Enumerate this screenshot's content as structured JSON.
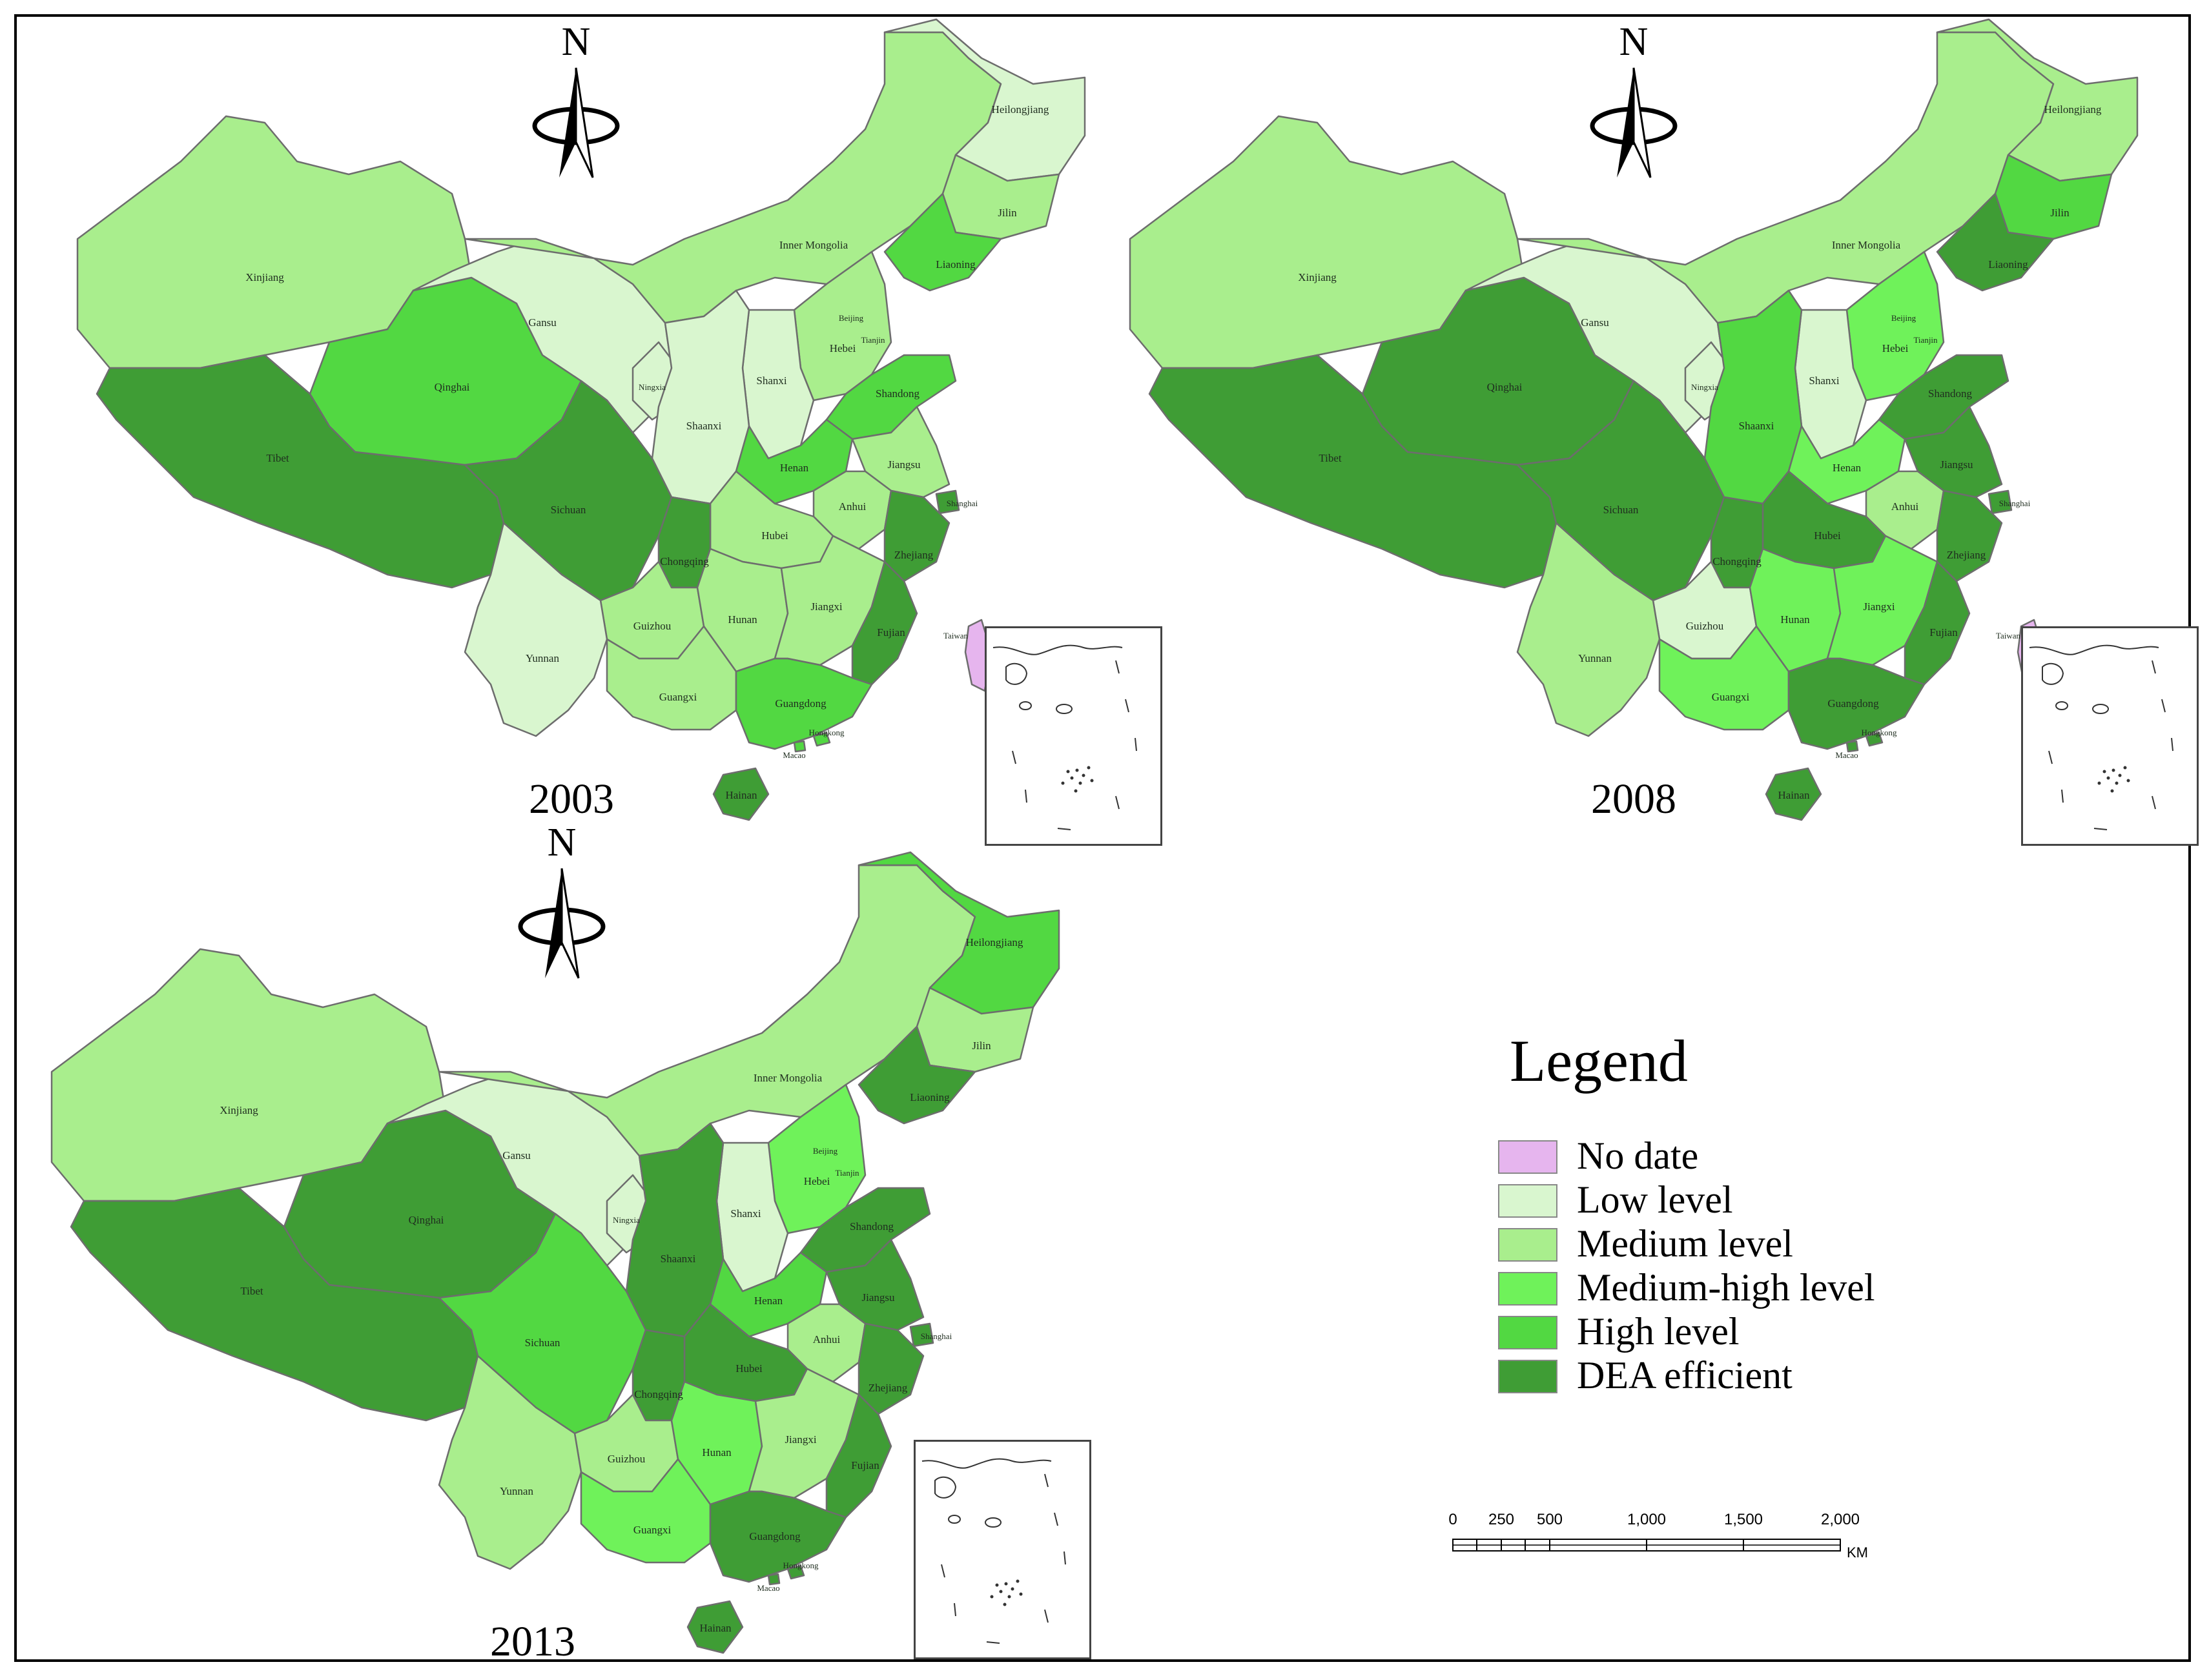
{
  "colors": {
    "no_date": "#e6b5ee",
    "low": "#d9f6cf",
    "medium": "#a9ee8d",
    "medium_high": "#6ff25a",
    "high": "#52d842",
    "dea_efficient": "#3f9d35",
    "border": "#6d6d6d"
  },
  "legend": {
    "title": "Legend",
    "items": [
      {
        "key": "no_date",
        "label": "No date"
      },
      {
        "key": "low",
        "label": "Low level"
      },
      {
        "key": "medium",
        "label": "Medium level"
      },
      {
        "key": "medium_high",
        "label": "Medium-high level"
      },
      {
        "key": "high",
        "label": "High level"
      },
      {
        "key": "dea_efficient",
        "label": "DEA efficient"
      }
    ]
  },
  "north_arrow": {
    "letter": "N"
  },
  "scale_bar": {
    "ticks": [
      "0",
      "250",
      "500",
      "1,000",
      "1,500",
      "2,000"
    ],
    "unit": "KM"
  },
  "provinces": [
    "Xinjiang",
    "Tibet",
    "Qinghai",
    "Gansu",
    "Inner Mongolia",
    "Heilongjiang",
    "Jilin",
    "Liaoning",
    "Beijing",
    "Tianjin",
    "Hebei",
    "Shanxi",
    "Shandong",
    "Ningxia",
    "Shaanxi",
    "Henan",
    "Jiangsu",
    "Anhui",
    "Shanghai",
    "Hubei",
    "Sichuan",
    "Chongqing",
    "Zhejiang",
    "Guizhou",
    "Hunan",
    "Jiangxi",
    "Fujian",
    "Yunnan",
    "Guangxi",
    "Guangdong",
    "Hongkong",
    "Macao",
    "Hainan",
    "Taiwan"
  ],
  "maps": [
    {
      "year": "2003",
      "classes": {
        "Xinjiang": "medium",
        "Tibet": "dea_efficient",
        "Qinghai": "high",
        "Gansu": "low",
        "Inner Mongolia": "medium",
        "Heilongjiang": "low",
        "Jilin": "medium",
        "Liaoning": "high",
        "Beijing": "dea_efficient",
        "Tianjin": "dea_efficient",
        "Hebei": "medium",
        "Shanxi": "low",
        "Shandong": "high",
        "Ningxia": "low",
        "Shaanxi": "low",
        "Henan": "high",
        "Jiangsu": "medium",
        "Anhui": "medium",
        "Shanghai": "dea_efficient",
        "Hubei": "medium",
        "Sichuan": "dea_efficient",
        "Chongqing": "dea_efficient",
        "Zhejiang": "dea_efficient",
        "Guizhou": "medium",
        "Hunan": "medium",
        "Jiangxi": "medium",
        "Fujian": "dea_efficient",
        "Yunnan": "low",
        "Guangxi": "medium",
        "Guangdong": "high",
        "Hongkong": "high",
        "Macao": "high",
        "Hainan": "dea_efficient",
        "Taiwan": "no_date"
      },
      "labels": {
        "Inner Mongolia": "Inner Mongolia",
        "Hongkong": "Hongkong",
        "Taiwan": "Taiwan"
      }
    },
    {
      "year": "2008",
      "classes": {
        "Xinjiang": "medium",
        "Tibet": "dea_efficient",
        "Qinghai": "dea_efficient",
        "Gansu": "low",
        "Inner Mongolia": "medium",
        "Heilongjiang": "medium",
        "Jilin": "high",
        "Liaoning": "dea_efficient",
        "Beijing": "medium_high",
        "Tianjin": "medium_high",
        "Hebei": "medium_high",
        "Shanxi": "low",
        "Shandong": "dea_efficient",
        "Ningxia": "low",
        "Shaanxi": "high",
        "Henan": "medium_high",
        "Jiangsu": "dea_efficient",
        "Anhui": "medium",
        "Shanghai": "dea_efficient",
        "Hubei": "dea_efficient",
        "Sichuan": "dea_efficient",
        "Chongqing": "dea_efficient",
        "Zhejiang": "dea_efficient",
        "Guizhou": "low",
        "Hunan": "medium_high",
        "Jiangxi": "medium_high",
        "Fujian": "dea_efficient",
        "Yunnan": "medium",
        "Guangxi": "medium_high",
        "Guangdong": "dea_efficient",
        "Hongkong": "dea_efficient",
        "Macao": "dea_efficient",
        "Hainan": "dea_efficient",
        "Taiwan": "no_date"
      },
      "labels": {
        "Inner Mongolia": "Inner Mongolia",
        "Hongkong": "Hongkong",
        "Macao": "Macao",
        "Taiwan": "Taiwan"
      }
    },
    {
      "year": "2013",
      "classes": {
        "Xinjiang": "medium",
        "Tibet": "dea_efficient",
        "Qinghai": "dea_efficient",
        "Gansu": "low",
        "Inner Mongolia": "medium",
        "Heilongjiang": "high",
        "Jilin": "medium",
        "Liaoning": "dea_efficient",
        "Beijing": "medium_high",
        "Tianjin": "medium_high",
        "Hebei": "medium_high",
        "Shanxi": "low",
        "Shandong": "dea_efficient",
        "Ningxia": "low",
        "Shaanxi": "dea_efficient",
        "Henan": "high",
        "Jiangsu": "dea_efficient",
        "Anhui": "medium",
        "Shanghai": "dea_efficient",
        "Hubei": "dea_efficient",
        "Sichuan": "high",
        "Chongqing": "dea_efficient",
        "Zhejiang": "dea_efficient",
        "Guizhou": "medium",
        "Hunan": "medium_high",
        "Jiangxi": "medium",
        "Fujian": "dea_efficient",
        "Yunnan": "medium",
        "Guangxi": "medium_high",
        "Guangdong": "dea_efficient",
        "Hongkong": "dea_efficient",
        "Macao": "dea_efficient",
        "Hainan": "dea_efficient",
        "Taiwan": "no_date"
      },
      "labels": {
        "Inner Mongolia": "Inner Mongolia",
        "Hongkong": "Hongkong",
        "Macao": "Macao",
        "Taiwan": "Taiwan"
      }
    }
  ]
}
